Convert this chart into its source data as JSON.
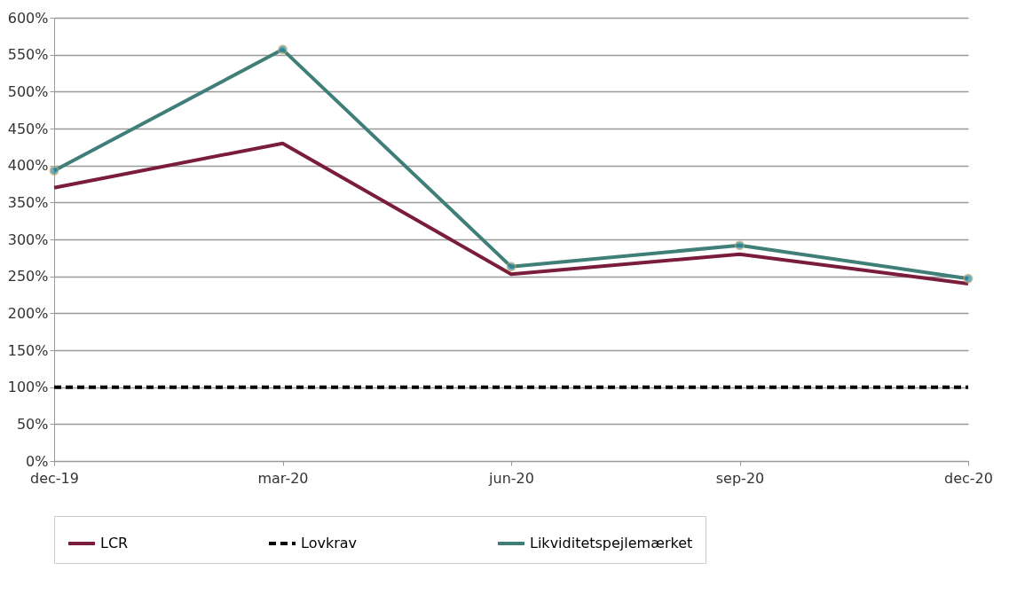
{
  "chart_data": {
    "type": "line",
    "categories": [
      "dec-19",
      "mar-20",
      "jun-20",
      "sep-20",
      "dec-20"
    ],
    "series": [
      {
        "name": "LCR",
        "color": "#7a1c3c",
        "values": [
          370,
          430,
          253,
          280,
          240
        ]
      },
      {
        "name": "Lovkrav",
        "color": "#000000",
        "line_style": "dashed",
        "values": [
          100,
          100,
          100,
          100,
          100
        ]
      },
      {
        "name": "Likviditetspejlemærket",
        "color": "#3f7f78",
        "marker": "circle",
        "values": [
          393,
          557,
          263,
          292,
          247
        ]
      }
    ],
    "ylim": [
      0,
      600
    ],
    "yticks": [
      {
        "value": 0,
        "label": "0%"
      },
      {
        "value": 50,
        "label": "50%"
      },
      {
        "value": 100,
        "label": "100%"
      },
      {
        "value": 150,
        "label": "150%"
      },
      {
        "value": 200,
        "label": "200%"
      },
      {
        "value": 250,
        "label": "250%"
      },
      {
        "value": 300,
        "label": "300%"
      },
      {
        "value": 350,
        "label": "350%"
      },
      {
        "value": 400,
        "label": "400%"
      },
      {
        "value": 450,
        "label": "450%"
      },
      {
        "value": 500,
        "label": "500%"
      },
      {
        "value": 550,
        "label": "550%"
      },
      {
        "value": 600,
        "label": "600%"
      }
    ],
    "grid": "y",
    "legend": "bottom"
  }
}
